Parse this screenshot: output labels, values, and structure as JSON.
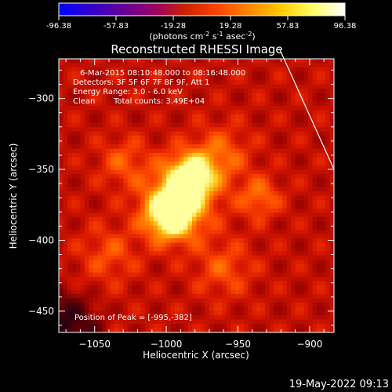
{
  "chart_data": {
    "type": "heatmap",
    "title": "Reconstructed RHESSI Image",
    "xlabel": "Heliocentric X (arcsec)",
    "ylabel": "Heliocentric Y (arcsec)",
    "xlim": [
      -1075,
      -883
    ],
    "ylim": [
      -465,
      -272
    ],
    "xticks": [
      -1050,
      -1000,
      -950,
      -900
    ],
    "yticks": [
      -300,
      -350,
      -400,
      -450
    ],
    "colorbar": {
      "ticks": [
        "-96.38",
        "-57.83",
        "-19.28",
        "19.28",
        "57.83",
        "96.38"
      ],
      "range": [
        -96.38,
        96.38
      ],
      "unit_label": "(photons cm",
      "unit_exp1": "-2",
      "unit_mid1": " s",
      "unit_exp2": "-1",
      "unit_mid2": " asec",
      "unit_exp3": "-2",
      "unit_end": ")",
      "colormap": [
        "#0000ff",
        "#3300cc",
        "#660099",
        "#990066",
        "#cc2200",
        "#ff4400",
        "#ff8800",
        "#ffcc00",
        "#ffff66",
        "#ffffff"
      ]
    },
    "peak": {
      "x": -995,
      "y": -382,
      "value": 96.38
    },
    "sources": [
      {
        "x": -997,
        "y": -382,
        "sigma": 12,
        "amp": 1.0
      },
      {
        "x": -983,
        "y": -355,
        "sigma": 11,
        "amp": 0.85
      },
      {
        "x": -990,
        "y": -370,
        "sigma": 18,
        "amp": 0.5
      },
      {
        "x": -962,
        "y": -340,
        "sigma": 14,
        "amp": 0.35
      },
      {
        "x": -935,
        "y": -370,
        "sigma": 10,
        "amp": 0.4
      },
      {
        "x": -1030,
        "y": -345,
        "sigma": 12,
        "amp": 0.3
      },
      {
        "x": -1040,
        "y": -410,
        "sigma": 14,
        "amp": 0.28
      },
      {
        "x": -960,
        "y": -420,
        "sigma": 14,
        "amp": 0.3
      }
    ],
    "limb_line": {
      "x": [
        -921,
        -883
      ],
      "y": [
        -265,
        -350
      ]
    }
  },
  "annotations": {
    "time": "6-Mar-2015 08:10:48.000 to 08:16:48.000",
    "detectors": "Detectors: 3F 5F 6F 7F 8F 9F, Att 1",
    "energy": "Energy Range: 3.0 - 6.0 keV",
    "clean": "Clean",
    "counts": "Total counts: 3.49E+04",
    "peak": "Position of Peak = [-995,-382]"
  },
  "footer": {
    "timestamp": "19-May-2022 09:13"
  }
}
